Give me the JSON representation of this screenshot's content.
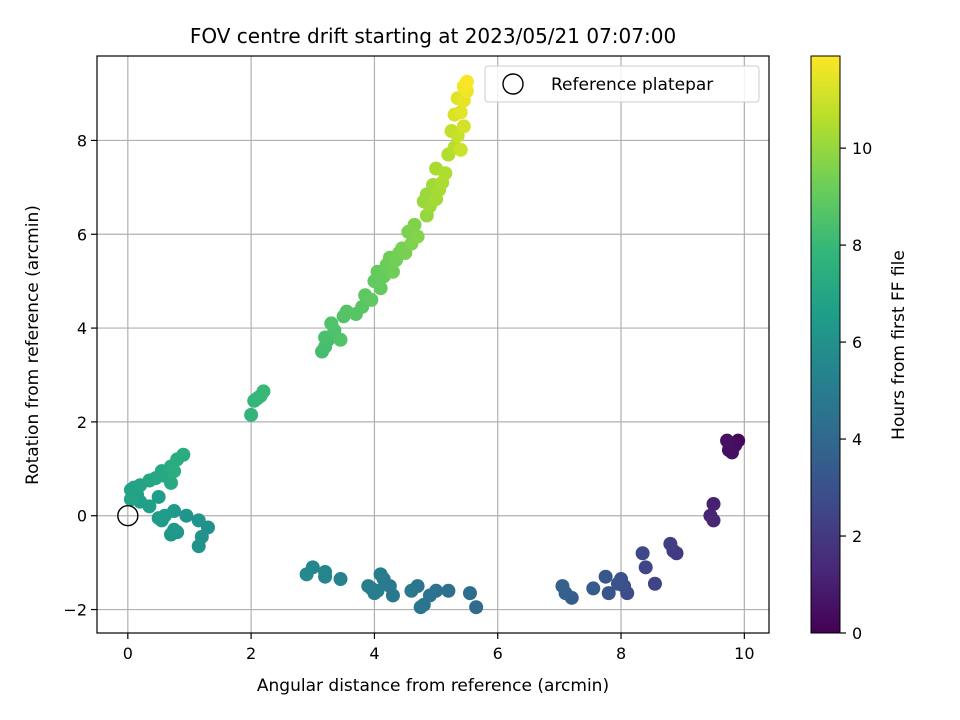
{
  "chart_data": {
    "type": "scatter",
    "title": "FOV centre drift starting at 2023/05/21 07:07:00",
    "xlabel": "Angular distance from reference (arcmin)",
    "ylabel": "Rotation from reference (arcmin)",
    "xlim": [
      -0.5,
      10.4
    ],
    "ylim": [
      -2.5,
      9.8
    ],
    "xticks": [
      0,
      2,
      4,
      6,
      8,
      10
    ],
    "yticks": [
      -2,
      0,
      2,
      4,
      6,
      8
    ],
    "xtick_labels": [
      "0",
      "2",
      "4",
      "6",
      "8",
      "10"
    ],
    "ytick_labels": [
      "−2",
      "0",
      "2",
      "4",
      "6",
      "8"
    ],
    "grid": true,
    "legend": {
      "placement": "top-right",
      "entries": [
        "Reference platepar"
      ]
    },
    "reference_point": {
      "name": "Reference platepar",
      "x": 0,
      "y": 0
    },
    "colorbar": {
      "label": "Hours from first FF file",
      "colormap": "viridis",
      "range": [
        0,
        11.9
      ],
      "ticks": [
        0,
        2,
        4,
        6,
        8,
        10
      ],
      "tick_labels": [
        "0",
        "2",
        "4",
        "6",
        "8",
        "10"
      ]
    },
    "colormap_stops": [
      "#440154",
      "#482878",
      "#3e4989",
      "#31688e",
      "#26828e",
      "#1f9e89",
      "#35b779",
      "#6ece58",
      "#b5de2b",
      "#fde725"
    ],
    "series": [
      {
        "points": [
          [
            9.9,
            1.6,
            0.2
          ],
          [
            9.75,
            1.55,
            0.3
          ],
          [
            9.8,
            1.45,
            0.35
          ],
          [
            9.85,
            1.5,
            0.4
          ],
          [
            9.75,
            1.4,
            0.45
          ],
          [
            9.8,
            1.35,
            0.5
          ],
          [
            9.72,
            1.6,
            0.55
          ],
          [
            9.5,
            0.25,
            1.1
          ],
          [
            9.45,
            0.0,
            1.2
          ],
          [
            9.5,
            -0.1,
            1.3
          ],
          [
            8.9,
            -0.8,
            2.0
          ],
          [
            8.85,
            -0.75,
            2.1
          ],
          [
            8.8,
            -0.6,
            2.2
          ],
          [
            8.55,
            -1.45,
            2.4
          ],
          [
            8.4,
            -1.1,
            2.5
          ],
          [
            8.35,
            -0.8,
            2.6
          ],
          [
            8.1,
            -1.65,
            2.8
          ],
          [
            8.05,
            -1.5,
            2.9
          ],
          [
            8.0,
            -1.35,
            3.0
          ],
          [
            7.95,
            -1.45,
            3.1
          ],
          [
            7.8,
            -1.65,
            3.2
          ],
          [
            7.75,
            -1.3,
            3.3
          ],
          [
            7.55,
            -1.55,
            3.4
          ],
          [
            7.2,
            -1.75,
            3.5
          ],
          [
            7.1,
            -1.65,
            3.6
          ],
          [
            7.05,
            -1.5,
            3.7
          ],
          [
            5.65,
            -1.95,
            4.1
          ],
          [
            5.55,
            -1.65,
            4.2
          ],
          [
            5.2,
            -1.6,
            4.3
          ],
          [
            5.0,
            -1.6,
            4.4
          ],
          [
            4.9,
            -1.7,
            4.5
          ],
          [
            4.8,
            -1.9,
            4.6
          ],
          [
            4.75,
            -1.95,
            4.65
          ],
          [
            4.7,
            -1.5,
            4.7
          ],
          [
            4.6,
            -1.6,
            4.75
          ],
          [
            4.3,
            -1.7,
            4.8
          ],
          [
            4.25,
            -1.5,
            4.85
          ],
          [
            4.15,
            -1.35,
            4.9
          ],
          [
            4.1,
            -1.25,
            4.95
          ],
          [
            4.05,
            -1.6,
            5.0
          ],
          [
            4.0,
            -1.65,
            5.05
          ],
          [
            3.95,
            -1.55,
            5.1
          ],
          [
            3.9,
            -1.5,
            5.15
          ],
          [
            3.45,
            -1.35,
            5.3
          ],
          [
            3.2,
            -1.3,
            5.4
          ],
          [
            3.2,
            -1.2,
            5.45
          ],
          [
            3.0,
            -1.1,
            5.5
          ],
          [
            2.9,
            -1.25,
            5.55
          ],
          [
            1.3,
            -0.25,
            6.0
          ],
          [
            1.2,
            -0.45,
            6.05
          ],
          [
            1.15,
            -0.65,
            6.1
          ],
          [
            1.15,
            -0.1,
            6.15
          ],
          [
            0.95,
            0.0,
            6.2
          ],
          [
            0.8,
            -0.35,
            6.25
          ],
          [
            0.7,
            -0.4,
            6.3
          ],
          [
            0.75,
            -0.3,
            6.35
          ],
          [
            0.75,
            0.1,
            6.4
          ],
          [
            0.55,
            -0.1,
            6.45
          ],
          [
            0.5,
            -0.05,
            6.5
          ],
          [
            0.6,
            0.0,
            6.55
          ],
          [
            0.5,
            0.4,
            6.6
          ],
          [
            0.35,
            0.2,
            6.65
          ],
          [
            0.2,
            0.3,
            6.7
          ],
          [
            0.15,
            0.45,
            6.75
          ],
          [
            0.05,
            0.55,
            6.8
          ],
          [
            0.1,
            0.6,
            6.85
          ],
          [
            0.2,
            0.65,
            6.9
          ],
          [
            0.05,
            0.35,
            6.95
          ],
          [
            0.35,
            0.75,
            7.0
          ],
          [
            0.45,
            0.8,
            7.05
          ],
          [
            0.55,
            0.95,
            7.1
          ],
          [
            0.6,
            0.85,
            7.15
          ],
          [
            0.7,
            0.7,
            7.2
          ],
          [
            0.7,
            1.05,
            7.25
          ],
          [
            0.8,
            1.2,
            7.3
          ],
          [
            0.9,
            1.3,
            7.35
          ],
          [
            0.75,
            0.95,
            7.4
          ],
          [
            2.0,
            2.15,
            7.8
          ],
          [
            2.05,
            2.45,
            7.85
          ],
          [
            2.1,
            2.5,
            7.9
          ],
          [
            2.15,
            2.55,
            7.95
          ],
          [
            2.2,
            2.65,
            8.0
          ],
          [
            3.15,
            3.5,
            8.3
          ],
          [
            3.2,
            3.6,
            8.35
          ],
          [
            3.25,
            3.75,
            8.4
          ],
          [
            3.2,
            3.8,
            8.45
          ],
          [
            3.35,
            3.95,
            8.5
          ],
          [
            3.3,
            4.1,
            8.55
          ],
          [
            3.45,
            3.75,
            8.6
          ],
          [
            3.5,
            4.25,
            8.65
          ],
          [
            3.55,
            4.35,
            8.7
          ],
          [
            3.7,
            4.3,
            8.75
          ],
          [
            3.8,
            4.45,
            8.8
          ],
          [
            3.85,
            4.7,
            8.85
          ],
          [
            3.95,
            4.6,
            8.9
          ],
          [
            4.0,
            5.0,
            8.95
          ],
          [
            4.05,
            5.2,
            9.0
          ],
          [
            4.1,
            4.85,
            9.05
          ],
          [
            4.15,
            5.1,
            9.1
          ],
          [
            4.2,
            5.35,
            9.15
          ],
          [
            4.25,
            5.5,
            9.2
          ],
          [
            4.3,
            5.2,
            9.25
          ],
          [
            4.35,
            5.45,
            9.3
          ],
          [
            4.4,
            5.6,
            9.35
          ],
          [
            4.45,
            5.7,
            9.4
          ],
          [
            4.5,
            5.6,
            9.45
          ],
          [
            4.55,
            6.05,
            9.5
          ],
          [
            4.6,
            5.8,
            9.55
          ],
          [
            4.65,
            6.2,
            9.6
          ],
          [
            4.7,
            5.95,
            9.65
          ],
          [
            4.85,
            6.4,
            10.0
          ],
          [
            4.8,
            6.7,
            10.05
          ],
          [
            4.85,
            6.85,
            10.1
          ],
          [
            4.9,
            6.6,
            10.15
          ],
          [
            4.95,
            7.05,
            10.2
          ],
          [
            5.0,
            6.75,
            10.25
          ],
          [
            5.05,
            6.95,
            10.3
          ],
          [
            5.0,
            7.4,
            10.35
          ],
          [
            5.1,
            7.1,
            10.4
          ],
          [
            5.15,
            7.3,
            10.45
          ],
          [
            5.2,
            7.7,
            10.5
          ],
          [
            5.3,
            7.85,
            10.6
          ],
          [
            5.25,
            8.2,
            10.8
          ],
          [
            5.35,
            8.1,
            10.9
          ],
          [
            5.4,
            7.8,
            11.0
          ],
          [
            5.45,
            8.3,
            11.1
          ],
          [
            5.3,
            8.55,
            11.2
          ],
          [
            5.35,
            8.9,
            11.3
          ],
          [
            5.4,
            8.6,
            11.4
          ],
          [
            5.45,
            8.85,
            11.5
          ],
          [
            5.5,
            9.05,
            11.6
          ],
          [
            5.45,
            9.15,
            11.7
          ],
          [
            5.5,
            9.25,
            11.8
          ]
        ]
      }
    ]
  }
}
